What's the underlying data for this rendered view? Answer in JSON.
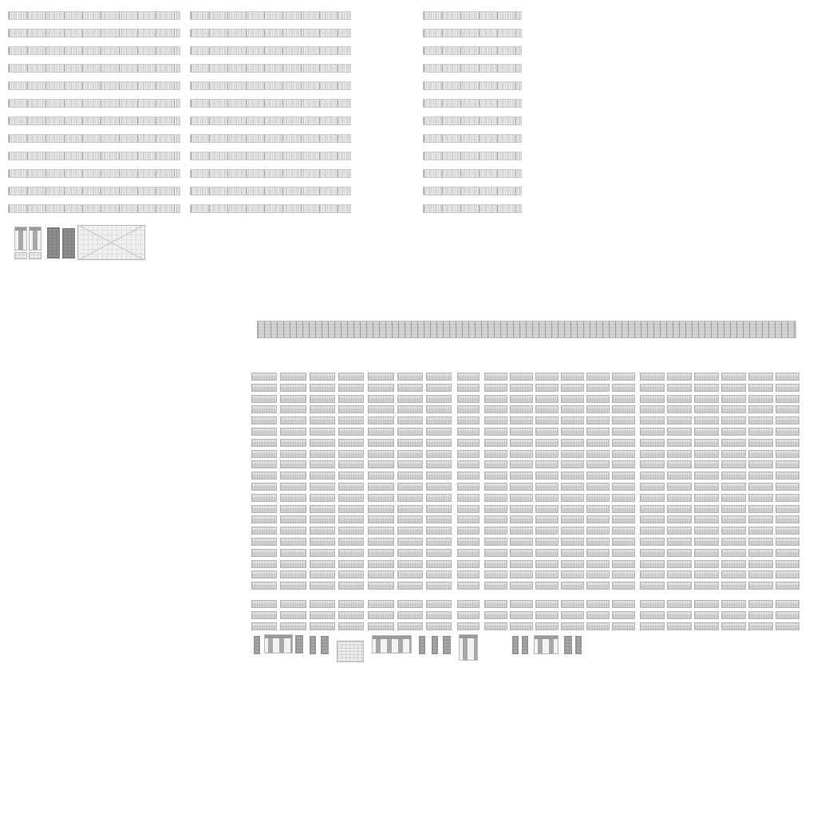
{
  "atlas": {
    "background": "#ffffff",
    "texture_tone": "#d2d2d2",
    "blocks": [
      {
        "name": "header-strip-block-left",
        "rows": 12
      },
      {
        "name": "header-strip-block-middle",
        "rows": 12
      },
      {
        "name": "header-strip-block-right",
        "rows": 12
      },
      {
        "name": "cell-grid-block",
        "rows": 23,
        "columns": 20
      }
    ]
  }
}
